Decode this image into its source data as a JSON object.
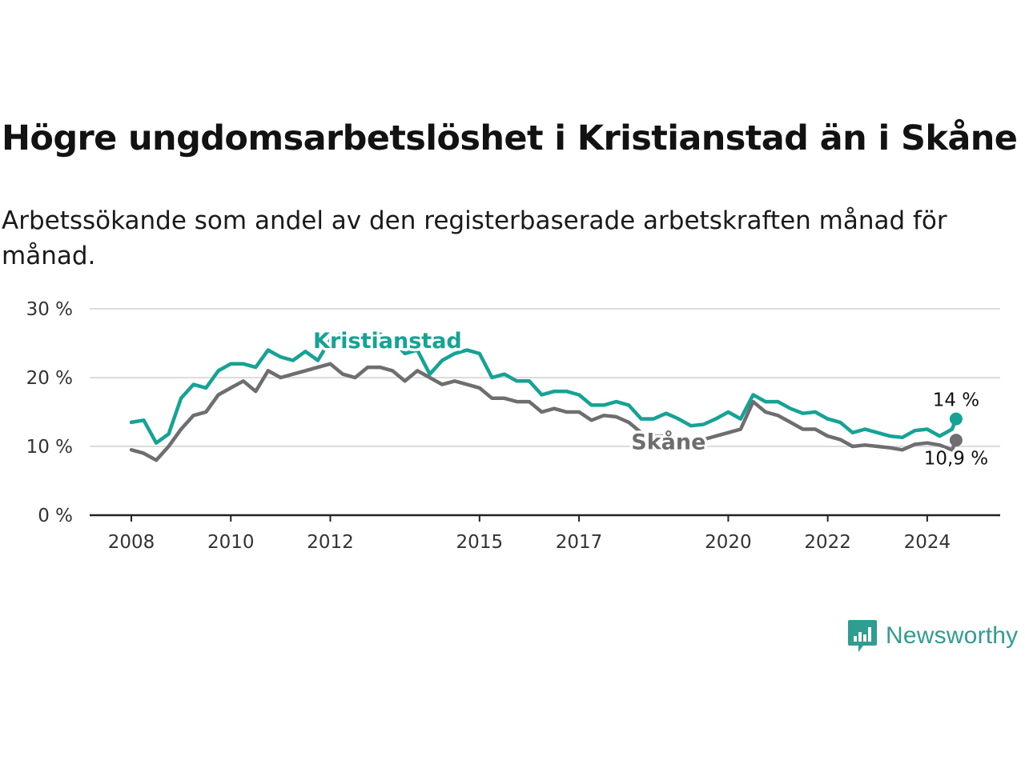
{
  "title": "Högre ungdomsarbetslöshet i Kristianstad än i Skåne",
  "subtitle": "Arbetssökande som andel av den registerbaserade arbetskraften månad för månad.",
  "brand": {
    "name": "Newsworthy",
    "icon": "newsworthy-logo-icon",
    "color": "#2e9e93"
  },
  "chart_data": {
    "type": "line",
    "title": "Högre ungdomsarbetslöshet i Kristianstad än i Skåne",
    "xlabel": "",
    "ylabel": "",
    "ylim": [
      0,
      30
    ],
    "xlim": [
      2008.0,
      2025.0
    ],
    "grid": true,
    "y_ticks": [
      0,
      10,
      20,
      30
    ],
    "y_tick_labels": [
      "0 %",
      "10 %",
      "20 %",
      "30 %"
    ],
    "x_ticks": [
      2008,
      2010,
      2012,
      2015,
      2017,
      2020,
      2022,
      2024
    ],
    "x_tick_labels": [
      "2008",
      "2010",
      "2012",
      "2015",
      "2017",
      "2020",
      "2022",
      "2024"
    ],
    "series": [
      {
        "name": "Kristianstad",
        "color": "#14a394",
        "last_value_label": "14 %",
        "x": [
          2008.0,
          2008.25,
          2008.5,
          2008.75,
          2009.0,
          2009.25,
          2009.5,
          2009.75,
          2010.0,
          2010.25,
          2010.5,
          2010.75,
          2011.0,
          2011.25,
          2011.5,
          2011.75,
          2012.0,
          2012.25,
          2012.5,
          2012.75,
          2013.0,
          2013.25,
          2013.5,
          2013.75,
          2014.0,
          2014.25,
          2014.5,
          2014.75,
          2015.0,
          2015.25,
          2015.5,
          2015.75,
          2016.0,
          2016.25,
          2016.5,
          2016.75,
          2017.0,
          2017.25,
          2017.5,
          2017.75,
          2018.0,
          2018.25,
          2018.5,
          2018.75,
          2019.0,
          2019.25,
          2019.5,
          2019.75,
          2020.0,
          2020.25,
          2020.5,
          2020.75,
          2021.0,
          2021.25,
          2021.5,
          2021.75,
          2022.0,
          2022.25,
          2022.5,
          2022.75,
          2023.0,
          2023.25,
          2023.5,
          2023.75,
          2024.0,
          2024.25,
          2024.5,
          2024.58
        ],
        "values": [
          13.5,
          13.8,
          10.5,
          11.8,
          17.0,
          19.0,
          18.5,
          21.0,
          22.0,
          22.0,
          21.5,
          24.0,
          23.0,
          22.5,
          23.8,
          22.5,
          25.5,
          26.5,
          25.0,
          25.8,
          26.3,
          25.5,
          23.5,
          24.0,
          20.5,
          22.5,
          23.5,
          24.0,
          23.5,
          20.0,
          20.5,
          19.5,
          19.5,
          17.5,
          18.0,
          18.0,
          17.5,
          16.0,
          16.0,
          16.5,
          16.0,
          14.0,
          14.0,
          14.8,
          14.0,
          13.0,
          13.2,
          14.0,
          15.0,
          14.0,
          17.5,
          16.5,
          16.5,
          15.5,
          14.8,
          15.0,
          14.0,
          13.5,
          12.0,
          12.5,
          12.0,
          11.5,
          11.3,
          12.3,
          12.5,
          11.5,
          12.5,
          14.0
        ]
      },
      {
        "name": "Skåne",
        "color": "#6f6d70",
        "last_value_label": "10,9 %",
        "x": [
          2008.0,
          2008.25,
          2008.5,
          2008.75,
          2009.0,
          2009.25,
          2009.5,
          2009.75,
          2010.0,
          2010.25,
          2010.5,
          2010.75,
          2011.0,
          2011.25,
          2011.5,
          2011.75,
          2012.0,
          2012.25,
          2012.5,
          2012.75,
          2013.0,
          2013.25,
          2013.5,
          2013.75,
          2014.0,
          2014.25,
          2014.5,
          2014.75,
          2015.0,
          2015.25,
          2015.5,
          2015.75,
          2016.0,
          2016.25,
          2016.5,
          2016.75,
          2017.0,
          2017.25,
          2017.5,
          2017.75,
          2018.0,
          2018.25,
          2018.5,
          2018.75,
          2019.0,
          2019.25,
          2019.5,
          2019.75,
          2020.0,
          2020.25,
          2020.5,
          2020.75,
          2021.0,
          2021.25,
          2021.5,
          2021.75,
          2022.0,
          2022.25,
          2022.5,
          2022.75,
          2023.0,
          2023.25,
          2023.5,
          2023.75,
          2024.0,
          2024.25,
          2024.5,
          2024.58
        ],
        "values": [
          9.5,
          9.0,
          8.0,
          10.0,
          12.5,
          14.5,
          15.0,
          17.5,
          18.5,
          19.5,
          18.0,
          21.0,
          20.0,
          20.5,
          21.0,
          21.5,
          22.0,
          20.5,
          20.0,
          21.5,
          21.5,
          21.0,
          19.5,
          21.0,
          20.0,
          19.0,
          19.5,
          19.0,
          18.5,
          17.0,
          17.0,
          16.5,
          16.5,
          15.0,
          15.5,
          15.0,
          15.0,
          13.8,
          14.5,
          14.3,
          13.5,
          12.0,
          11.5,
          11.5,
          11.0,
          10.5,
          11.0,
          11.5,
          12.0,
          12.5,
          16.5,
          15.0,
          14.5,
          13.5,
          12.5,
          12.5,
          11.5,
          11.0,
          10.0,
          10.2,
          10.0,
          9.8,
          9.5,
          10.3,
          10.5,
          10.2,
          9.5,
          10.9
        ]
      }
    ],
    "annotations": [
      {
        "text": "Kristianstad",
        "series": "Kristianstad"
      },
      {
        "text": "Skåne",
        "series": "Skåne"
      }
    ]
  }
}
